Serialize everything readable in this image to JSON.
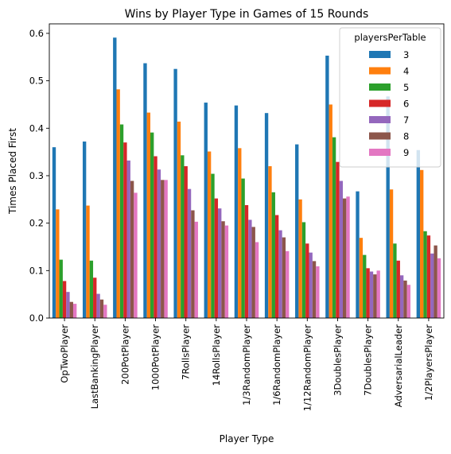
{
  "chart_data": {
    "type": "bar",
    "title": "Wins by Player Type in Games of 15 Rounds",
    "xlabel": "Player Type",
    "ylabel": "Times Placed First",
    "ylim": [
      0,
      0.62
    ],
    "yticks": [
      "0.0",
      "0.1",
      "0.2",
      "0.3",
      "0.4",
      "0.5",
      "0.6"
    ],
    "grid": false,
    "legend": {
      "title": "playersPerTable",
      "placement": "top-right"
    },
    "categories": [
      "OpTwoPlayer",
      "LastBankingPlayer",
      "200PotPlayer",
      "1000PotPlayer",
      "7RollsPlayer",
      "14RollsPlayer",
      "1/3RandomPlayer",
      "1/6RandomPlayer",
      "1/12RandomPlayer",
      "3DoublesPlayer",
      "7DoublesPlayer",
      "AdversarialLeader",
      "1/2PlayersPlayer"
    ],
    "series": [
      {
        "name": "3",
        "color": "#1f77b4",
        "values": [
          0.36,
          0.372,
          0.591,
          0.537,
          0.525,
          0.454,
          0.448,
          0.432,
          0.366,
          0.553,
          0.267,
          0.467,
          0.354
        ]
      },
      {
        "name": "4",
        "color": "#ff7f0e",
        "values": [
          0.229,
          0.237,
          0.482,
          0.433,
          0.414,
          0.351,
          0.358,
          0.32,
          0.25,
          0.45,
          0.169,
          0.271,
          0.312
        ]
      },
      {
        "name": "5",
        "color": "#2ca02c",
        "values": [
          0.123,
          0.121,
          0.408,
          0.391,
          0.343,
          0.304,
          0.294,
          0.265,
          0.202,
          0.381,
          0.133,
          0.157,
          0.183
        ]
      },
      {
        "name": "6",
        "color": "#d62728",
        "values": [
          0.078,
          0.085,
          0.37,
          0.341,
          0.32,
          0.252,
          0.238,
          0.217,
          0.157,
          0.329,
          0.105,
          0.121,
          0.174
        ]
      },
      {
        "name": "7",
        "color": "#9467bd",
        "values": [
          0.055,
          0.051,
          0.332,
          0.313,
          0.272,
          0.231,
          0.207,
          0.185,
          0.138,
          0.289,
          0.098,
          0.09,
          0.136
        ]
      },
      {
        "name": "8",
        "color": "#8c564b",
        "values": [
          0.034,
          0.039,
          0.289,
          0.291,
          0.227,
          0.204,
          0.192,
          0.17,
          0.12,
          0.252,
          0.092,
          0.079,
          0.153
        ]
      },
      {
        "name": "9",
        "color": "#e377c2",
        "values": [
          0.03,
          0.028,
          0.264,
          0.291,
          0.203,
          0.195,
          0.16,
          0.141,
          0.109,
          0.256,
          0.1,
          0.07,
          0.126
        ]
      }
    ]
  }
}
